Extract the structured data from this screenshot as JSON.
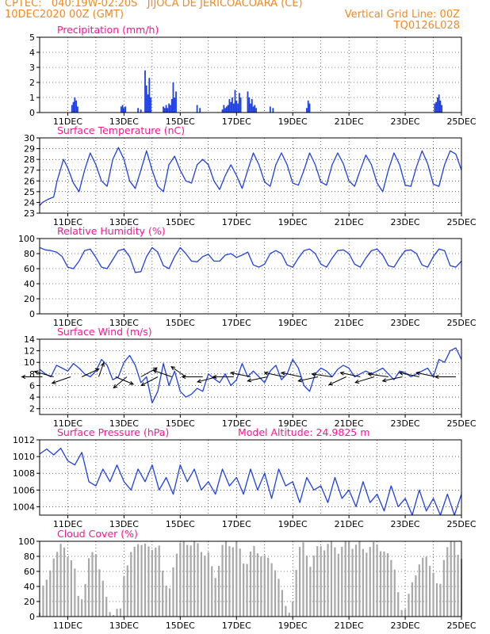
{
  "header": {
    "line1": "CPTEC:   040:19W-02:20S   JIJOCA DE JERICOACOARA (CE)",
    "line2_left": "10DEC2020 00Z (GMT)",
    "line2_right": "Vertical Grid Line: 00Z",
    "line3_right": "TQ0126L028"
  },
  "colors": {
    "header": "#f08a24",
    "title": "#ff1493",
    "series": "#2040e0",
    "cloud": "#a8a8a8"
  },
  "x_axis": {
    "start": 0,
    "end": 15,
    "ticks": [
      1,
      3,
      5,
      7,
      9,
      11,
      13,
      15
    ],
    "tick_labels": [
      "11DEC",
      "13DEC",
      "15DEC",
      "17DEC",
      "19DEC",
      "21DEC",
      "23DEC",
      "25DEC"
    ]
  },
  "chart_data": [
    {
      "id": "precip",
      "type": "bar",
      "title": "Precipitation (mm/h)",
      "ylim": [
        0,
        5
      ],
      "yticks": [
        "0",
        "1",
        "2",
        "3",
        "4",
        "5"
      ],
      "grid": true,
      "x": [
        1.15,
        1.2,
        1.25,
        1.3,
        1.35,
        2.9,
        2.95,
        3.0,
        3.05,
        3.5,
        3.6,
        3.75,
        3.8,
        3.85,
        3.9,
        3.95,
        4.4,
        4.45,
        4.5,
        4.55,
        4.6,
        4.65,
        4.7,
        4.75,
        4.8,
        4.85,
        5.6,
        5.7,
        6.5,
        6.55,
        6.6,
        6.65,
        6.7,
        6.75,
        6.8,
        6.85,
        6.9,
        6.95,
        7.0,
        7.05,
        7.1,
        7.15,
        7.4,
        7.45,
        7.5,
        7.55,
        7.6,
        7.65,
        7.7,
        8.2,
        8.3,
        9.5,
        9.55,
        9.6,
        14.05,
        14.1,
        14.15,
        14.2,
        14.25,
        14.3
      ],
      "values": [
        0.5,
        0.7,
        1.0,
        0.8,
        0.4,
        0.4,
        0.5,
        0.3,
        0.4,
        0.3,
        0.2,
        2.8,
        1.8,
        1.2,
        2.3,
        1.0,
        0.4,
        0.3,
        0.5,
        0.3,
        0.6,
        0.5,
        0.9,
        2.0,
        1.0,
        1.4,
        0.5,
        0.3,
        0.2,
        0.5,
        0.3,
        0.4,
        0.5,
        0.9,
        0.7,
        1.0,
        0.6,
        1.5,
        0.8,
        0.6,
        1.3,
        1.0,
        1.4,
        1.0,
        0.6,
        0.9,
        0.4,
        0.5,
        0.3,
        0.4,
        0.3,
        0.3,
        0.8,
        0.6,
        0.6,
        0.7,
        1.0,
        1.2,
        0.8,
        0.5
      ]
    },
    {
      "id": "temp",
      "type": "line",
      "title": "Surface Temperature (nC)",
      "ylim": [
        23,
        30
      ],
      "yticks": [
        "23",
        "24",
        "25",
        "26",
        "27",
        "28",
        "29",
        "30"
      ],
      "grid": true,
      "x": [
        0,
        0.1,
        0.3,
        0.5,
        0.62,
        0.85,
        1.0,
        1.2,
        1.4,
        1.6,
        1.8,
        2.0,
        2.2,
        2.4,
        2.6,
        2.8,
        3.0,
        3.2,
        3.4,
        3.6,
        3.8,
        4.0,
        4.2,
        4.4,
        4.6,
        4.8,
        5.0,
        5.2,
        5.4,
        5.6,
        5.8,
        6.0,
        6.2,
        6.4,
        6.6,
        6.8,
        7.0,
        7.2,
        7.4,
        7.6,
        7.8,
        8.0,
        8.2,
        8.4,
        8.6,
        8.8,
        9.0,
        9.2,
        9.4,
        9.6,
        9.8,
        10.0,
        10.2,
        10.4,
        10.6,
        10.8,
        11.0,
        11.2,
        11.4,
        11.6,
        11.8,
        12.0,
        12.2,
        12.4,
        12.6,
        12.8,
        13.0,
        13.2,
        13.4,
        13.6,
        13.8,
        14.0,
        14.2,
        14.4,
        14.6,
        14.8,
        15.0
      ],
      "values": [
        23.7,
        24.0,
        24.3,
        24.5,
        26.0,
        28.0,
        27.2,
        25.8,
        25.0,
        27.0,
        28.6,
        27.5,
        26.0,
        25.5,
        28.0,
        29.1,
        28.0,
        26.0,
        25.3,
        27.0,
        28.8,
        27.0,
        25.5,
        25.0,
        27.5,
        28.3,
        27.0,
        26.0,
        25.8,
        27.5,
        28.0,
        27.5,
        26.0,
        25.2,
        26.5,
        27.5,
        26.5,
        25.3,
        27.0,
        28.6,
        27.5,
        25.9,
        25.5,
        27.5,
        28.6,
        27.5,
        25.8,
        25.6,
        27.0,
        28.6,
        27.5,
        25.9,
        25.6,
        27.5,
        28.6,
        27.6,
        26.0,
        25.5,
        27.0,
        28.4,
        27.5,
        25.8,
        25.0,
        27.0,
        28.6,
        27.5,
        25.6,
        25.5,
        27.3,
        28.8,
        27.6,
        25.7,
        25.5,
        27.5,
        28.8,
        28.5,
        27.0
      ]
    },
    {
      "id": "rh",
      "type": "line",
      "title": "Relative Humidity (%)",
      "ylim": [
        0,
        100
      ],
      "yticks": [
        "0",
        "20",
        "40",
        "60",
        "80",
        "100"
      ],
      "grid": true,
      "x": [
        0,
        0.2,
        0.4,
        0.6,
        0.8,
        1.0,
        1.2,
        1.4,
        1.6,
        1.8,
        2.0,
        2.2,
        2.4,
        2.6,
        2.8,
        3.0,
        3.2,
        3.4,
        3.6,
        3.8,
        4.0,
        4.2,
        4.4,
        4.6,
        4.8,
        5.0,
        5.2,
        5.4,
        5.6,
        5.8,
        6.0,
        6.2,
        6.4,
        6.6,
        6.8,
        7.0,
        7.2,
        7.4,
        7.6,
        7.8,
        8.0,
        8.2,
        8.4,
        8.6,
        8.8,
        9.0,
        9.2,
        9.4,
        9.6,
        9.8,
        10.0,
        10.2,
        10.4,
        10.6,
        10.8,
        11.0,
        11.2,
        11.4,
        11.6,
        11.8,
        12.0,
        12.2,
        12.4,
        12.6,
        12.8,
        13.0,
        13.2,
        13.4,
        13.6,
        13.8,
        14.0,
        14.2,
        14.4,
        14.6,
        14.8,
        15.0
      ],
      "values": [
        88,
        85,
        84,
        82,
        76,
        62,
        60,
        70,
        84,
        86,
        75,
        62,
        60,
        72,
        84,
        86,
        76,
        55,
        56,
        76,
        88,
        82,
        64,
        60,
        76,
        88,
        80,
        70,
        69,
        76,
        79,
        70,
        70,
        78,
        80,
        75,
        78,
        82,
        65,
        62,
        66,
        80,
        84,
        80,
        65,
        62,
        74,
        84,
        86,
        80,
        66,
        62,
        74,
        84,
        85,
        80,
        66,
        62,
        74,
        84,
        86,
        78,
        64,
        62,
        74,
        84,
        85,
        80,
        65,
        62,
        76,
        86,
        84,
        64,
        62,
        70
      ]
    },
    {
      "id": "wind",
      "type": "line",
      "title": "Surface Wind (m/s)",
      "ylim": [
        1,
        14
      ],
      "yticks": [
        "2",
        "4",
        "6",
        "8",
        "10",
        "12",
        "14"
      ],
      "grid": true,
      "x": [
        0,
        0.2,
        0.4,
        0.6,
        0.8,
        1.0,
        1.2,
        1.4,
        1.6,
        1.8,
        2.0,
        2.2,
        2.4,
        2.6,
        2.8,
        3.0,
        3.2,
        3.4,
        3.6,
        3.8,
        4.0,
        4.2,
        4.4,
        4.6,
        4.8,
        5.0,
        5.2,
        5.4,
        5.6,
        5.8,
        6.0,
        6.2,
        6.4,
        6.6,
        6.8,
        7.0,
        7.2,
        7.4,
        7.6,
        7.8,
        8.0,
        8.2,
        8.4,
        8.6,
        8.8,
        9.0,
        9.2,
        9.4,
        9.6,
        9.8,
        10.0,
        10.2,
        10.4,
        10.6,
        10.8,
        11.0,
        11.2,
        11.4,
        11.6,
        11.8,
        12.0,
        12.2,
        12.4,
        12.6,
        12.8,
        13.0,
        13.2,
        13.4,
        13.6,
        13.8,
        14.0,
        14.2,
        14.4,
        14.6,
        14.8,
        15.0
      ],
      "values": [
        8.8,
        8.0,
        7.5,
        9.5,
        9.0,
        8.5,
        9.8,
        9.0,
        8.0,
        7.5,
        8.5,
        10.5,
        9.5,
        7.0,
        7.5,
        10.0,
        11.2,
        9.5,
        6.5,
        7.5,
        3.0,
        5.0,
        9.8,
        6.0,
        8.5,
        5.0,
        4.0,
        4.5,
        5.5,
        5.0,
        8.0,
        7.2,
        6.5,
        8.0,
        6.0,
        7.0,
        9.8,
        7.5,
        8.5,
        7.5,
        6.5,
        8.5,
        9.5,
        7.0,
        8.0,
        10.5,
        9.0,
        6.0,
        5.0,
        8.0,
        9.0,
        8.5,
        7.5,
        8.8,
        9.5,
        9.0,
        7.5,
        8.0,
        8.5,
        8.0,
        8.5,
        9.0,
        8.0,
        7.0,
        8.5,
        8.2,
        7.5,
        8.0,
        8.5,
        9.0,
        7.5,
        10.5,
        10.0,
        12.0,
        12.5,
        10.5
      ]
    },
    {
      "id": "pressure",
      "type": "line",
      "title": "Surface Pressure (hPa)",
      "subtitle": "Model Altitude: 24.9825 m",
      "ylim": [
        1003,
        1012
      ],
      "yticks": [
        "1004",
        "1006",
        "1008",
        "1010",
        "1012"
      ],
      "grid": true,
      "x": [
        0,
        0.25,
        0.5,
        0.75,
        1.0,
        1.25,
        1.5,
        1.75,
        2.0,
        2.25,
        2.5,
        2.75,
        3.0,
        3.25,
        3.5,
        3.75,
        4.0,
        4.25,
        4.5,
        4.75,
        5.0,
        5.25,
        5.5,
        5.75,
        6.0,
        6.25,
        6.5,
        6.75,
        7.0,
        7.25,
        7.5,
        7.75,
        8.0,
        8.25,
        8.5,
        8.75,
        9.0,
        9.25,
        9.5,
        9.75,
        10.0,
        10.25,
        10.5,
        10.75,
        11.0,
        11.25,
        11.5,
        11.75,
        12.0,
        12.25,
        12.5,
        12.75,
        13.0,
        13.25,
        13.5,
        13.75,
        14.0,
        14.25,
        14.5,
        14.75,
        15.0
      ],
      "values": [
        1010.3,
        1010.9,
        1010.2,
        1011.0,
        1009.5,
        1009.0,
        1010.5,
        1007.0,
        1006.5,
        1008.5,
        1007.0,
        1009.0,
        1007.0,
        1006.0,
        1008.5,
        1007.0,
        1009.0,
        1006.0,
        1007.5,
        1005.5,
        1009.0,
        1007.0,
        1008.5,
        1006.0,
        1007.0,
        1005.5,
        1008.5,
        1006.5,
        1007.5,
        1005.5,
        1008.5,
        1006.0,
        1008.0,
        1005.0,
        1008.5,
        1006.5,
        1007.0,
        1004.5,
        1007.5,
        1006.0,
        1006.5,
        1004.5,
        1007.5,
        1005.0,
        1006.0,
        1004.0,
        1007.0,
        1004.5,
        1005.5,
        1003.5,
        1006.5,
        1004.0,
        1005.0,
        1003.0,
        1006.0,
        1003.5,
        1005.0,
        1003.0,
        1005.5,
        1003.0,
        1005.5
      ]
    },
    {
      "id": "cloud",
      "type": "bar",
      "title": "Cloud Cover (%)",
      "ylim": [
        0,
        100
      ],
      "yticks": [
        "0",
        "20",
        "40",
        "60",
        "80",
        "100"
      ],
      "grid": true,
      "profile_x": [
        0,
        0.1,
        0.3,
        0.5,
        0.8,
        1.0,
        1.2,
        1.4,
        1.6,
        1.8,
        2.0,
        2.1,
        2.3,
        2.6,
        2.8,
        2.9,
        3.0,
        3.3,
        3.5,
        3.7,
        4.0,
        4.3,
        4.4,
        4.6,
        4.8,
        5.0,
        5.3,
        5.5,
        5.8,
        6.0,
        6.2,
        6.5,
        6.8,
        7.0,
        7.3,
        7.6,
        8.0,
        8.3,
        8.6,
        8.8,
        8.95,
        9.05,
        9.2,
        9.4,
        9.6,
        10.0,
        10.4,
        10.7,
        11.0,
        11.5,
        12.0,
        12.3,
        12.6,
        12.8,
        12.9,
        13.0,
        13.2,
        13.5,
        13.8,
        14.0,
        14.2,
        14.4,
        14.6,
        14.8,
        15.0
      ],
      "profile_values": [
        5,
        40,
        50,
        80,
        95,
        85,
        70,
        20,
        40,
        80,
        90,
        70,
        30,
        5,
        3,
        10,
        60,
        85,
        100,
        95,
        90,
        95,
        50,
        30,
        80,
        95,
        100,
        95,
        90,
        80,
        50,
        90,
        100,
        95,
        70,
        90,
        80,
        70,
        40,
        5,
        2,
        40,
        90,
        95,
        70,
        95,
        95,
        90,
        100,
        90,
        95,
        85,
        70,
        20,
        5,
        10,
        40,
        70,
        80,
        60,
        25,
        90,
        100,
        95,
        80
      ]
    }
  ],
  "wind_vectors": {
    "x": [
      0.1,
      0.5,
      1.1,
      1.5,
      2.1,
      2.7,
      3.1,
      3.6,
      4.2,
      4.7,
      5.2,
      5.8,
      6.3,
      6.9,
      7.5,
      8.1,
      8.7,
      9.3,
      9.9,
      10.4,
      10.9,
      11.4,
      11.9,
      12.4,
      12.9,
      13.5,
      14.1,
      14.8
    ],
    "u": [
      -1.0,
      -1.0,
      -1.0,
      0.6,
      0.2,
      0.5,
      -0.5,
      0.5,
      -0.8,
      -0.8,
      -0.4,
      -1.0,
      -0.8,
      -1.0,
      -1.0,
      -1.0,
      -1.0,
      -1.0,
      -1.0,
      -1.0,
      -0.6,
      -1.0,
      -0.7,
      -1.0,
      -1.0,
      -1.0,
      -1.0,
      -1.0
    ],
    "v": [
      0.0,
      0.4,
      -0.5,
      0.4,
      0.8,
      -0.3,
      -0.6,
      0.4,
      -0.6,
      0.4,
      0.4,
      0.0,
      -0.3,
      0.0,
      0.3,
      -0.3,
      0.3,
      0.3,
      -0.3,
      0.2,
      -0.4,
      0.3,
      -0.3,
      0.2,
      -0.3,
      0.3,
      0.3,
      0.0
    ]
  }
}
